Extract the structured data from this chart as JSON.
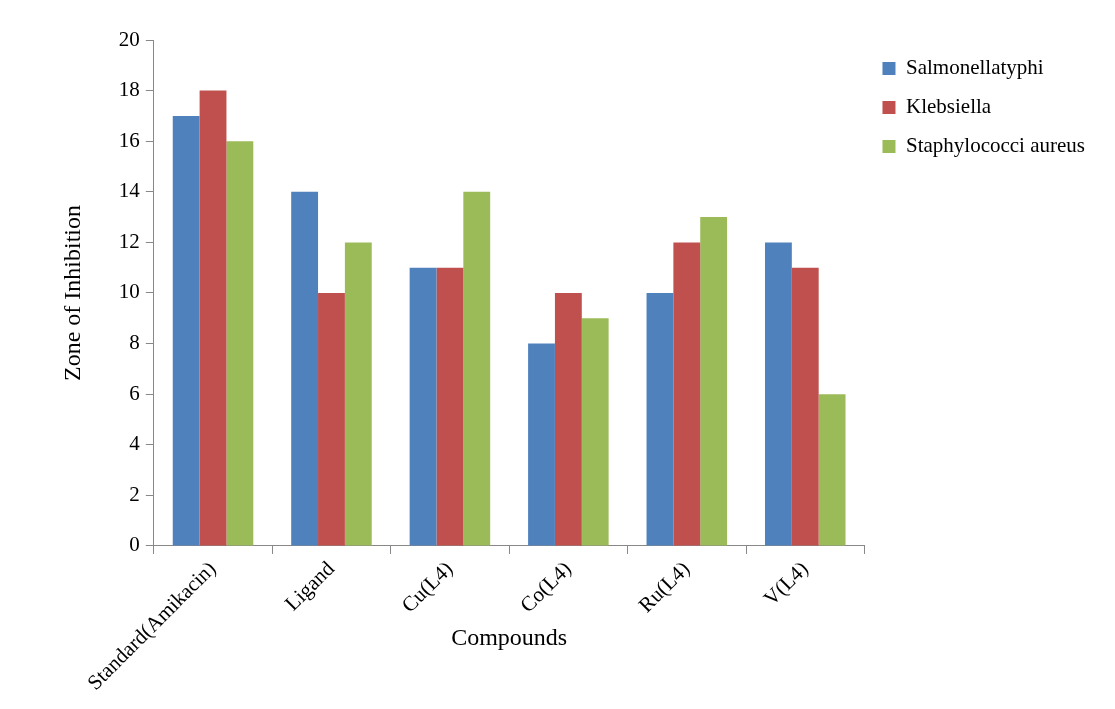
{
  "chart_data": {
    "type": "bar",
    "xlabel": "Compounds",
    "ylabel": "Zone of Inhibition",
    "categories": [
      "Standard(Amikacin)",
      "Ligand",
      "Cu(L4)",
      "Co(L4)",
      "Ru(L4)",
      "V(L4)"
    ],
    "series": [
      {
        "name": "Salmonellatyphi",
        "color": "#4f81bd",
        "values": [
          17,
          14,
          11,
          8,
          10,
          12
        ]
      },
      {
        "name": "Klebsiella",
        "color": "#c0504d",
        "values": [
          18,
          10,
          11,
          10,
          12,
          11
        ]
      },
      {
        "name": "Staphylococci aureus",
        "color": "#9bbb59",
        "values": [
          16,
          12,
          14,
          9,
          13,
          6
        ]
      }
    ],
    "ylim": [
      0,
      20
    ],
    "yticks": [
      0,
      2,
      4,
      6,
      8,
      10,
      12,
      14,
      16,
      18,
      20
    ],
    "grid": false,
    "legend": "top right"
  }
}
